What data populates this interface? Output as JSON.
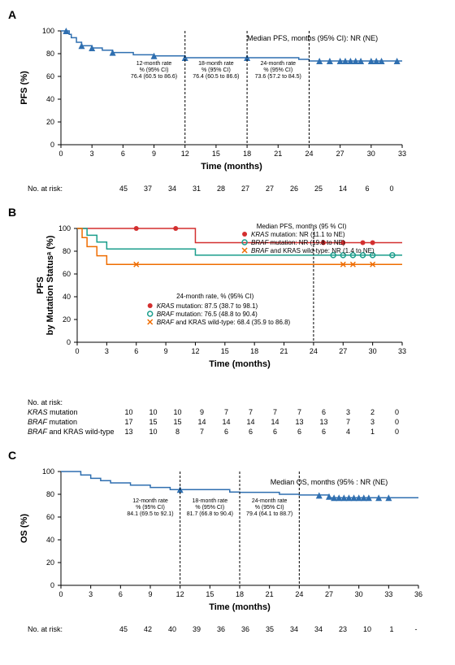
{
  "panelA": {
    "label": "A",
    "ylabel": "PFS (%)",
    "xlabel": "Time (months)",
    "median_text": "Median PFS, months (95% CI): NR (NE)",
    "annot12": {
      "title": "12-month rate",
      "sub": "% (95% CI)",
      "val": "76.4 (60.5 to 86.6)"
    },
    "annot18": {
      "title": "18-month rate",
      "sub": "% (95% CI)",
      "val": "76.4 (60.5 to 86.6)"
    },
    "annot24": {
      "title": "24-month rate",
      "sub": "% (95% CI)",
      "val": "73.6 (57.2 to 84.5)"
    },
    "xlim": [
      0,
      33
    ],
    "ylim": [
      0,
      100
    ],
    "xticks": [
      0,
      3,
      6,
      9,
      12,
      15,
      18,
      21,
      24,
      27,
      30,
      33
    ],
    "yticks": [
      0,
      20,
      40,
      60,
      80,
      100
    ],
    "curve": [
      [
        0,
        100
      ],
      [
        0.5,
        100
      ],
      [
        0.8,
        97
      ],
      [
        1,
        94
      ],
      [
        1.5,
        90
      ],
      [
        2,
        87
      ],
      [
        3,
        85
      ],
      [
        4,
        83
      ],
      [
        5,
        81
      ],
      [
        7,
        79
      ],
      [
        9,
        78
      ],
      [
        12,
        76.4
      ],
      [
        18,
        76.4
      ],
      [
        23,
        75
      ],
      [
        24,
        73.6
      ],
      [
        28,
        73.6
      ],
      [
        33,
        73.6
      ]
    ],
    "censors": [
      [
        0.5,
        100
      ],
      [
        2,
        87
      ],
      [
        3,
        85
      ],
      [
        5,
        81
      ],
      [
        9,
        78
      ],
      [
        12,
        76.4
      ],
      [
        18,
        76.4
      ],
      [
        25,
        73.6
      ],
      [
        26,
        73.6
      ],
      [
        27,
        73.6
      ],
      [
        27.5,
        73.6
      ],
      [
        28,
        73.6
      ],
      [
        28.5,
        73.6
      ],
      [
        29,
        73.6
      ],
      [
        30,
        73.6
      ],
      [
        30.5,
        73.6
      ],
      [
        31,
        73.6
      ],
      [
        32.5,
        73.6
      ]
    ],
    "line_color": "#2f6fb0",
    "risk_label": "No. at risk:",
    "risk": [
      45,
      37,
      34,
      31,
      28,
      27,
      27,
      26,
      25,
      14,
      6,
      0
    ]
  },
  "panelB": {
    "label": "B",
    "ylabel": "PFS\nby Mutation Statusᵃ (%)",
    "xlabel": "Time (months)",
    "legend_title": "Median PFS, months (95 % CI)",
    "series": [
      {
        "name": "KRAS mutation",
        "median": "NR (11.1 to NE)",
        "rate24": "87.5 (38.7 to 98.1)",
        "color": "#d32f2f",
        "marker": "filled-circle"
      },
      {
        "name": "BRAF mutation",
        "median": "NR (19.8 to NE)",
        "rate24": "76.5 (48.8 to 90.4)",
        "color": "#1b9e8c",
        "marker": "open-circle"
      },
      {
        "name": "BRAF and KRAS wild-type",
        "median": "NR (1.4 to NE)",
        "rate24": "68.4 (35.9 to 86.8)",
        "color": "#ef6c00",
        "marker": "x"
      }
    ],
    "annot24_title": "24-month rate, % (95% CI)",
    "xlim": [
      0,
      33
    ],
    "ylim": [
      0,
      100
    ],
    "xticks": [
      0,
      3,
      6,
      9,
      12,
      15,
      18,
      21,
      24,
      27,
      30,
      33
    ],
    "yticks": [
      0,
      20,
      40,
      60,
      80,
      100
    ],
    "curves": {
      "kras": [
        [
          0,
          100
        ],
        [
          8,
          100
        ],
        [
          12,
          100
        ],
        [
          12,
          87.5
        ],
        [
          33,
          87.5
        ]
      ],
      "braf": [
        [
          0,
          100
        ],
        [
          1,
          94
        ],
        [
          2,
          88
        ],
        [
          3,
          82
        ],
        [
          9,
          82
        ],
        [
          12,
          76.5
        ],
        [
          33,
          76.5
        ]
      ],
      "wt": [
        [
          0,
          100
        ],
        [
          0.5,
          92
        ],
        [
          1,
          84
        ],
        [
          2,
          76
        ],
        [
          3,
          68.4
        ],
        [
          33,
          68.4
        ]
      ]
    },
    "censors_kras": [
      [
        6,
        100
      ],
      [
        10,
        100
      ],
      [
        25,
        87.5
      ],
      [
        27,
        87.5
      ],
      [
        29,
        87.5
      ],
      [
        30,
        87.5
      ]
    ],
    "censors_braf": [
      [
        26,
        76.5
      ],
      [
        27,
        76.5
      ],
      [
        28,
        76.5
      ],
      [
        29,
        76.5
      ],
      [
        30,
        76.5
      ],
      [
        32,
        76.5
      ]
    ],
    "censors_wt": [
      [
        6,
        68.4
      ],
      [
        27,
        68.4
      ],
      [
        28,
        68.4
      ],
      [
        30,
        68.4
      ]
    ],
    "risk_label": "No. at risk:",
    "risk": {
      "KRAS mutation": [
        10,
        10,
        10,
        9,
        7,
        7,
        7,
        7,
        6,
        3,
        2,
        0
      ],
      "BRAF mutation": [
        17,
        15,
        15,
        14,
        14,
        14,
        14,
        13,
        13,
        7,
        3,
        0
      ],
      "BRAF and KRAS wild-type": [
        13,
        10,
        8,
        7,
        6,
        6,
        6,
        6,
        6,
        4,
        1,
        0
      ]
    }
  },
  "panelC": {
    "label": "C",
    "ylabel": "OS (%)",
    "xlabel": "Time (months)",
    "median_text": "Median OS, months (95% : NR (NE)",
    "annot12": {
      "title": "12-month rate",
      "sub": "% (95% CI)",
      "val": "84.1 (69.5 to 92.1)"
    },
    "annot18": {
      "title": "18-month rate",
      "sub": "% (95% CI)",
      "val": "81.7 (66.8 to 90.4)"
    },
    "annot24": {
      "title": "24-month rate",
      "sub": "% (95% CI)",
      "val": "79.4 (64.1 to 88.7)"
    },
    "xlim": [
      0,
      36
    ],
    "ylim": [
      0,
      100
    ],
    "xticks": [
      0,
      3,
      6,
      9,
      12,
      15,
      18,
      21,
      24,
      27,
      30,
      33,
      36
    ],
    "yticks": [
      0,
      20,
      40,
      60,
      80,
      100
    ],
    "curve": [
      [
        0,
        100
      ],
      [
        2,
        97
      ],
      [
        3,
        94
      ],
      [
        4,
        92
      ],
      [
        5,
        90
      ],
      [
        7,
        88
      ],
      [
        9,
        86
      ],
      [
        11,
        84.1
      ],
      [
        12,
        84.1
      ],
      [
        17,
        82
      ],
      [
        18,
        81.7
      ],
      [
        22,
        80
      ],
      [
        24,
        79.4
      ],
      [
        27,
        77
      ],
      [
        30,
        77
      ],
      [
        36,
        77
      ]
    ],
    "censors": [
      [
        12,
        84.1
      ],
      [
        26,
        79
      ],
      [
        27,
        78
      ],
      [
        27.5,
        77
      ],
      [
        28,
        77
      ],
      [
        28.5,
        77
      ],
      [
        29,
        77
      ],
      [
        29.5,
        77
      ],
      [
        30,
        77
      ],
      [
        30.5,
        77
      ],
      [
        31,
        77
      ],
      [
        32,
        77
      ],
      [
        33,
        77
      ]
    ],
    "line_color": "#2f6fb0",
    "risk_label": "No. at risk:",
    "risk": [
      45,
      42,
      40,
      39,
      36,
      36,
      35,
      34,
      34,
      23,
      10,
      1,
      "-"
    ]
  },
  "style": {
    "axis_color": "#000000",
    "grid_color": "#e0e0e0",
    "background": "#ffffff",
    "triangle_size": 4,
    "line_width": 1.5,
    "font_axis": 10,
    "font_annot": 7
  }
}
